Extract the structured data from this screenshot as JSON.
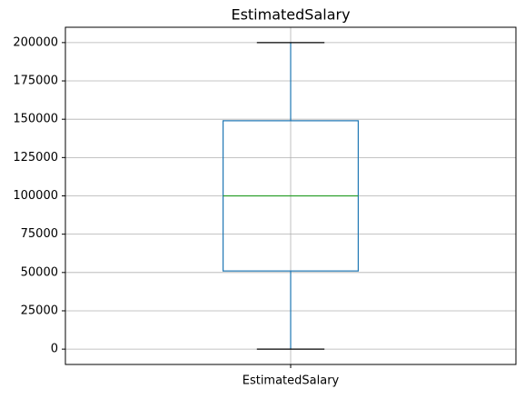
{
  "chart_data": {
    "type": "box",
    "title": "EstimatedSalary",
    "categories": [
      "EstimatedSalary"
    ],
    "boxes": [
      {
        "min": 0,
        "q1": 51000,
        "median": 100000,
        "q3": 149000,
        "max": 200000
      }
    ],
    "box_color": "#1f77b4",
    "median_color": "#2ca02c",
    "cap_color": "#000000",
    "ylim": [
      -10000,
      210000
    ],
    "yticks": [
      0,
      25000,
      50000,
      75000,
      100000,
      125000,
      150000,
      175000,
      200000
    ],
    "grid": true
  }
}
